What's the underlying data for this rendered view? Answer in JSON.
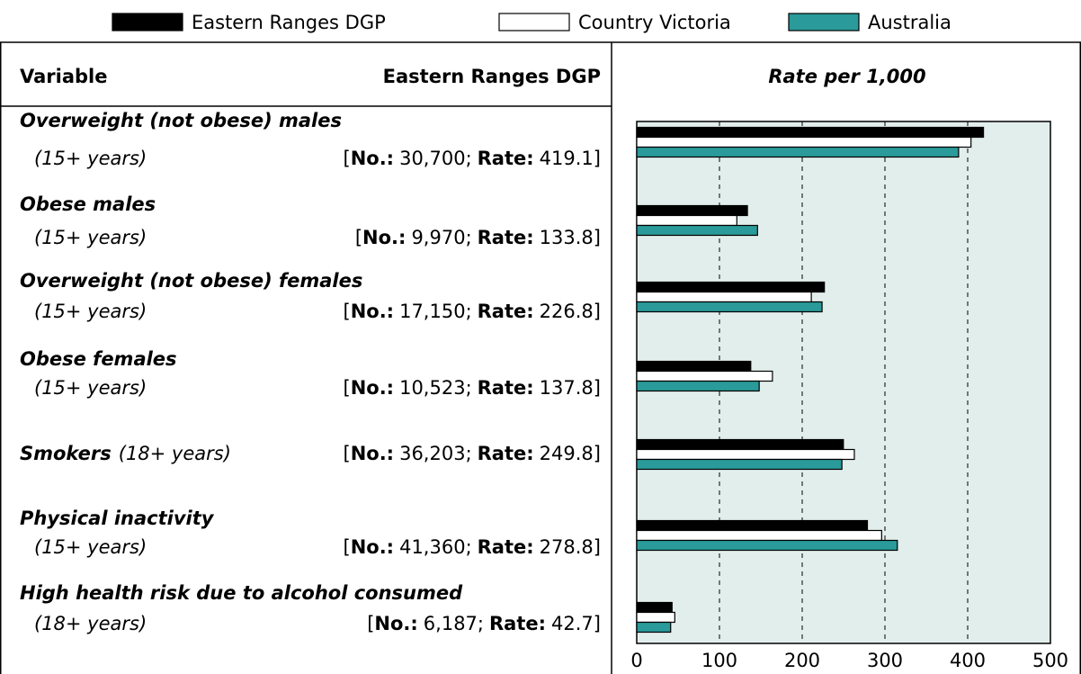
{
  "chart_data": {
    "type": "bar",
    "orientation": "horizontal",
    "title": "Rate per 1,000",
    "column_headers": [
      "Variable",
      "Eastern Ranges DGP"
    ],
    "categories": [
      "Overweight (not obese) males",
      "Obese males",
      "Overweight (not obese) females",
      "Obese females",
      "Smokers",
      "Physical inactivity",
      "High health risk due to alcohol consumed"
    ],
    "age_groups": [
      "(15+ years)",
      "(15+ years)",
      "(15+ years)",
      "(15+ years)",
      "(18+ years)",
      "(15+ years)",
      "(18+ years)"
    ],
    "numbers": [
      "30,700",
      "9,970",
      "17,150",
      "10,523",
      "36,203",
      "41,360",
      "6,187"
    ],
    "stat_open": "[",
    "number_label": "No.:",
    "separator": ";",
    "rate_label": "Rate:",
    "stat_close": "]",
    "series": [
      {
        "name": "Eastern Ranges DGP",
        "color": "#000000",
        "values": [
          419.1,
          133.8,
          226.8,
          137.8,
          249.8,
          278.8,
          42.7
        ]
      },
      {
        "name": "Country Victoria",
        "color": "#ffffff",
        "values": [
          404,
          121,
          211,
          164,
          263,
          296,
          46
        ]
      },
      {
        "name": "Australia",
        "color": "#2a9a9a",
        "values": [
          389,
          146,
          224,
          148,
          248,
          315,
          41
        ]
      }
    ],
    "xlim": [
      0,
      500
    ],
    "xticks": [
      0,
      100,
      200,
      300,
      400,
      500
    ],
    "grid": true,
    "plot_background": "#e2eeeb"
  }
}
